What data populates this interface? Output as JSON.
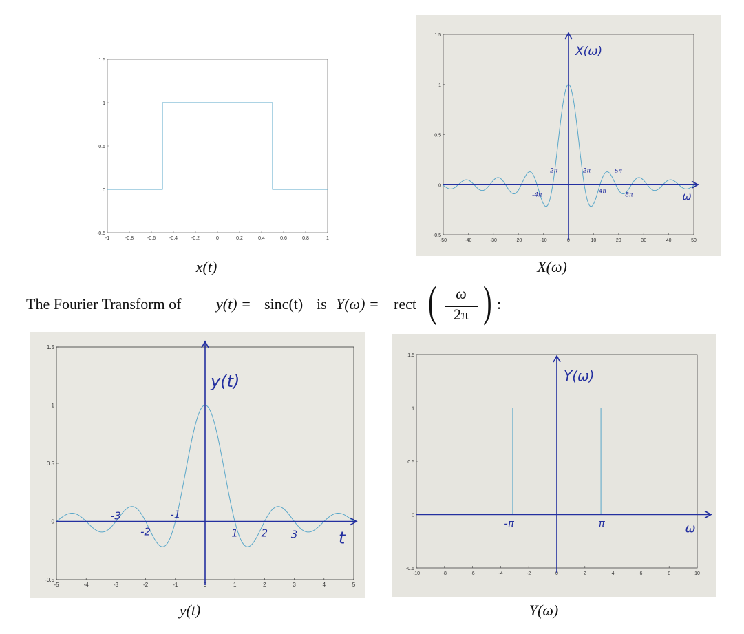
{
  "captions": {
    "x_t": "x(t)",
    "X_w": "X(ω)",
    "y_t": "y(t)",
    "Y_w": "Y(ω)"
  },
  "statement": {
    "prefix": "The Fourier Transform of",
    "y_eq": "y(t) =",
    "sinc": "sinc(t)",
    "is": "is",
    "Y_eq": "Y(ω) =",
    "rect": "rect",
    "frac_num": "ω",
    "frac_den": "2π",
    "colon": ":"
  },
  "colors": {
    "plot_line": "#5aa7c9",
    "pen_ink": "#2430a0",
    "paper": "#e9e8e2"
  },
  "chart_data": [
    {
      "type": "line",
      "title": "",
      "xlabel": "",
      "ylabel": "",
      "xlim": [
        -1,
        1
      ],
      "ylim": [
        -0.5,
        1.5
      ],
      "xticks": [
        "-1",
        "-0.8",
        "-0.6",
        "-0.4",
        "-0.2",
        "0",
        "0.2",
        "0.4",
        "0.6",
        "0.8",
        "1"
      ],
      "yticks": [
        "-0.5",
        "0",
        "0.5",
        "1",
        "1.5"
      ],
      "grid": false,
      "series": [
        {
          "x": [
            -1,
            -0.5,
            -0.5,
            0.5,
            0.5,
            1
          ],
          "y": [
            0,
            0,
            1,
            1,
            0,
            0
          ]
        }
      ]
    },
    {
      "type": "line",
      "title": "",
      "xlabel": "",
      "ylabel": "",
      "xlim": [
        -50,
        50
      ],
      "ylim": [
        -0.5,
        1.5
      ],
      "xticks": [
        "-50",
        "-40",
        "-30",
        "-20",
        "-10",
        "0",
        "10",
        "20",
        "30",
        "40",
        "50"
      ],
      "yticks": [
        "-0.5",
        "0",
        "0.5",
        "1",
        "1.5"
      ],
      "grid": false,
      "function": "sin(w/2)/(w/2)",
      "annotations": [
        "X(ω)",
        "-2π",
        "2π",
        "6π",
        "-4π",
        "4π",
        "8π",
        "ω"
      ]
    },
    {
      "type": "line",
      "title": "",
      "xlabel": "",
      "ylabel": "",
      "xlim": [
        -5,
        5
      ],
      "ylim": [
        -0.5,
        1.5
      ],
      "xticks": [
        "-5",
        "-4",
        "-3",
        "-2",
        "-1",
        "0",
        "1",
        "2",
        "3",
        "4",
        "5"
      ],
      "yticks": [
        "-0.5",
        "0",
        "0.5",
        "1",
        "1.5"
      ],
      "grid": false,
      "function": "sin(pi*t)/(pi*t)",
      "annotations": [
        "y(t)",
        "-3",
        "-2",
        "-1",
        "1",
        "2",
        "3",
        "t"
      ]
    },
    {
      "type": "line",
      "title": "",
      "xlabel": "",
      "ylabel": "",
      "xlim": [
        -10,
        10
      ],
      "ylim": [
        -0.5,
        1.5
      ],
      "xticks": [
        "-10",
        "-8",
        "-6",
        "-4",
        "-2",
        "0",
        "2",
        "4",
        "6",
        "8",
        "10"
      ],
      "yticks": [
        "-0.5",
        "0",
        "0.5",
        "1",
        "1.5"
      ],
      "grid": false,
      "series": [
        {
          "x": [
            -3.14159,
            -3.14159,
            3.14159,
            3.14159
          ],
          "y": [
            0,
            1,
            1,
            0
          ]
        }
      ],
      "annotations": [
        "Y(ω)",
        "-π",
        "π",
        "ω"
      ]
    }
  ]
}
